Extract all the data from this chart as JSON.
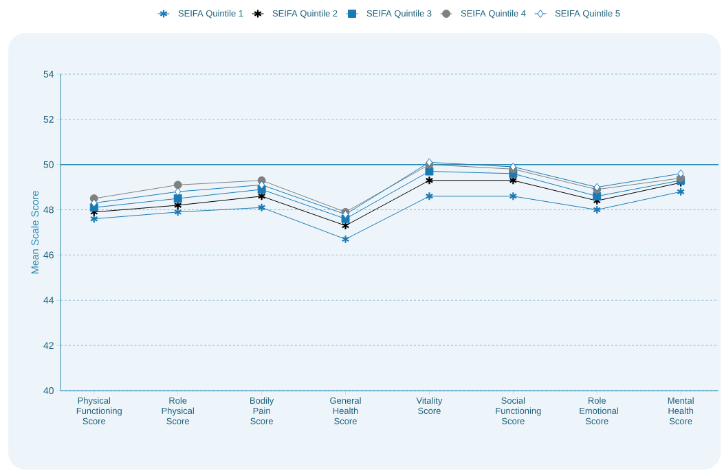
{
  "chart_data": {
    "type": "line",
    "ylabel": "Mean Scale Score",
    "categories": [
      "Physical Functioning Score",
      "Role Physical Score",
      "Bodily Pain Score",
      "General Health Score",
      "Vitality Score",
      "Social Functioning Score",
      "Role Emotional Score",
      "Mental Health Score"
    ],
    "series": [
      {
        "name": "SEIFA Quintile 1",
        "color": "#1a7ab5",
        "marker": "cross",
        "values": [
          47.6,
          47.9,
          48.1,
          46.7,
          48.6,
          48.6,
          48.0,
          48.8
        ]
      },
      {
        "name": "SEIFA Quintile 2",
        "color": "#000000",
        "marker": "cross",
        "values": [
          47.9,
          48.2,
          48.6,
          47.3,
          49.3,
          49.3,
          48.4,
          49.2
        ]
      },
      {
        "name": "SEIFA Quintile 3",
        "color": "#1a7ab5",
        "marker": "square",
        "values": [
          48.1,
          48.5,
          48.9,
          47.6,
          49.7,
          49.6,
          48.6,
          49.3
        ]
      },
      {
        "name": "SEIFA Quintile 4",
        "color": "#808080",
        "marker": "circle",
        "values": [
          48.5,
          49.1,
          49.3,
          47.9,
          50.0,
          49.8,
          48.9,
          49.4
        ]
      },
      {
        "name": "SEIFA Quintile 5",
        "color": "#1a7ab5",
        "marker": "diamond",
        "values": [
          48.3,
          48.8,
          49.1,
          47.8,
          50.1,
          49.9,
          49.0,
          49.6
        ]
      }
    ],
    "ylim": [
      40,
      54
    ],
    "yticks": [
      40,
      42,
      44,
      46,
      48,
      50,
      52,
      54
    ],
    "ref_lines": [
      {
        "axis": "y",
        "value": 50,
        "color": "#2a8ab0",
        "line_style": "solid"
      }
    ],
    "grid": "y",
    "legend": "top"
  }
}
